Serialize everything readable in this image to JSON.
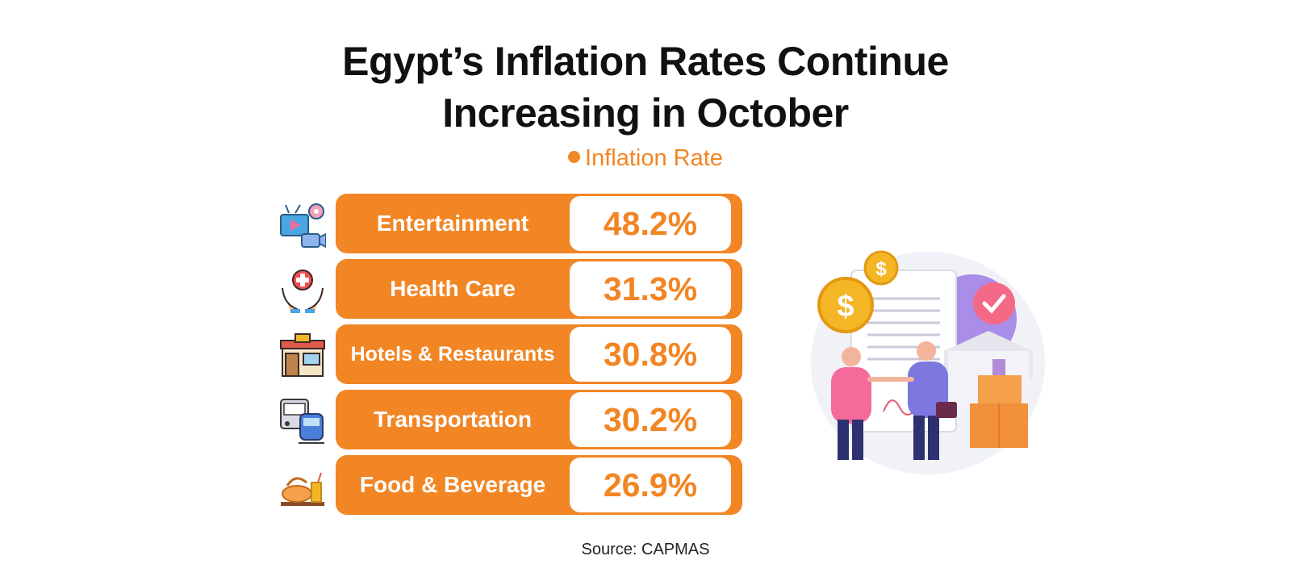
{
  "chart_data": {
    "type": "bar",
    "title": "Egypt’s Inflation Rates Continue Increasing in October",
    "title_lines": [
      "Egypt’s Inflation Rates Continue",
      "Increasing in October"
    ],
    "series": [
      {
        "name": "Inflation Rate",
        "values": [
          48.2,
          31.3,
          30.8,
          30.2,
          26.9
        ]
      }
    ],
    "categories": [
      "Entertainment",
      "Health Care",
      "Hotels & Restaurants",
      "Transportation",
      "Food & Beverage"
    ],
    "value_labels": [
      "48.2%",
      "31.3%",
      "30.8%",
      "30.2%",
      "26.9%"
    ],
    "legend_position": "top-center",
    "source": "Source: CAPMAS"
  },
  "colors": {
    "accent": "#f28524",
    "title": "#111111",
    "background": "#ffffff"
  },
  "icons": [
    "media-tv-icon",
    "health-care-hands-icon",
    "restaurant-storefront-icon",
    "bus-train-icon",
    "food-drink-icon"
  ],
  "illustration": "business-deal-handshake-illustration"
}
